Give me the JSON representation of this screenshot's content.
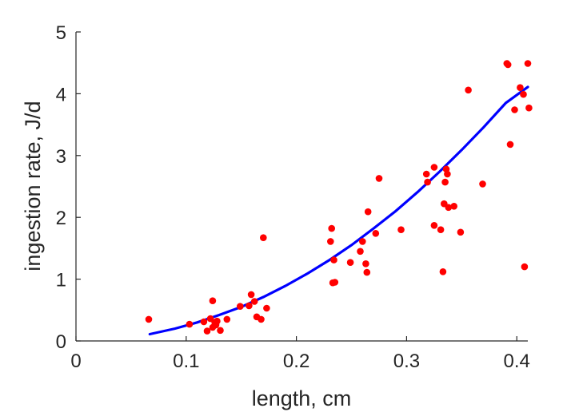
{
  "chart_data": {
    "type": "scatter",
    "xlabel": "length, cm",
    "ylabel": "ingestion rate, J/d",
    "xlim": [
      0,
      0.41
    ],
    "ylim": [
      0,
      5
    ],
    "x_ticks": [
      "0",
      "0.1",
      "0.2",
      "0.3",
      "0.4"
    ],
    "y_ticks": [
      "0",
      "1",
      "2",
      "3",
      "4",
      "5"
    ],
    "grid": false,
    "legend": "none",
    "colors": {
      "points": "#ff0000",
      "curve": "#0000ff",
      "axis": "#262626"
    },
    "series": [
      {
        "kind": "points",
        "points": [
          [
            0.066,
            0.35
          ],
          [
            0.103,
            0.27
          ],
          [
            0.116,
            0.31
          ],
          [
            0.119,
            0.16
          ],
          [
            0.122,
            0.36
          ],
          [
            0.124,
            0.65
          ],
          [
            0.124,
            0.22
          ],
          [
            0.126,
            0.3
          ],
          [
            0.127,
            0.26
          ],
          [
            0.128,
            0.32
          ],
          [
            0.131,
            0.17
          ],
          [
            0.137,
            0.35
          ],
          [
            0.149,
            0.56
          ],
          [
            0.157,
            0.57
          ],
          [
            0.159,
            0.75
          ],
          [
            0.162,
            0.64
          ],
          [
            0.164,
            0.39
          ],
          [
            0.168,
            0.35
          ],
          [
            0.17,
            1.67
          ],
          [
            0.173,
            0.53
          ],
          [
            0.231,
            1.61
          ],
          [
            0.232,
            1.82
          ],
          [
            0.233,
            0.94
          ],
          [
            0.234,
            1.31
          ],
          [
            0.235,
            0.95
          ],
          [
            0.249,
            1.27
          ],
          [
            0.258,
            1.45
          ],
          [
            0.26,
            1.61
          ],
          [
            0.263,
            1.25
          ],
          [
            0.264,
            1.11
          ],
          [
            0.265,
            2.09
          ],
          [
            0.272,
            1.74
          ],
          [
            0.275,
            2.63
          ],
          [
            0.295,
            1.8
          ],
          [
            0.318,
            2.7
          ],
          [
            0.319,
            2.57
          ],
          [
            0.325,
            1.87
          ],
          [
            0.325,
            2.81
          ],
          [
            0.331,
            1.8
          ],
          [
            0.333,
            1.12
          ],
          [
            0.334,
            2.22
          ],
          [
            0.335,
            2.57
          ],
          [
            0.336,
            2.78
          ],
          [
            0.337,
            2.7
          ],
          [
            0.338,
            2.16
          ],
          [
            0.343,
            2.18
          ],
          [
            0.349,
            1.76
          ],
          [
            0.356,
            4.06
          ],
          [
            0.369,
            2.54
          ],
          [
            0.391,
            4.49
          ],
          [
            0.392,
            4.47
          ],
          [
            0.394,
            3.18
          ],
          [
            0.398,
            3.74
          ],
          [
            0.403,
            4.1
          ],
          [
            0.406,
            3.99
          ],
          [
            0.407,
            1.2
          ],
          [
            0.41,
            4.49
          ],
          [
            0.411,
            3.77
          ]
        ]
      },
      {
        "kind": "fit-curve",
        "x": [
          0.067,
          0.09,
          0.11,
          0.13,
          0.15,
          0.17,
          0.19,
          0.21,
          0.23,
          0.25,
          0.27,
          0.29,
          0.31,
          0.33,
          0.35,
          0.37,
          0.39,
          0.41
        ],
        "y": [
          0.11,
          0.2,
          0.3,
          0.42,
          0.55,
          0.71,
          0.89,
          1.09,
          1.31,
          1.55,
          1.82,
          2.1,
          2.41,
          2.74,
          3.09,
          3.46,
          3.85,
          4.11
        ]
      }
    ]
  }
}
